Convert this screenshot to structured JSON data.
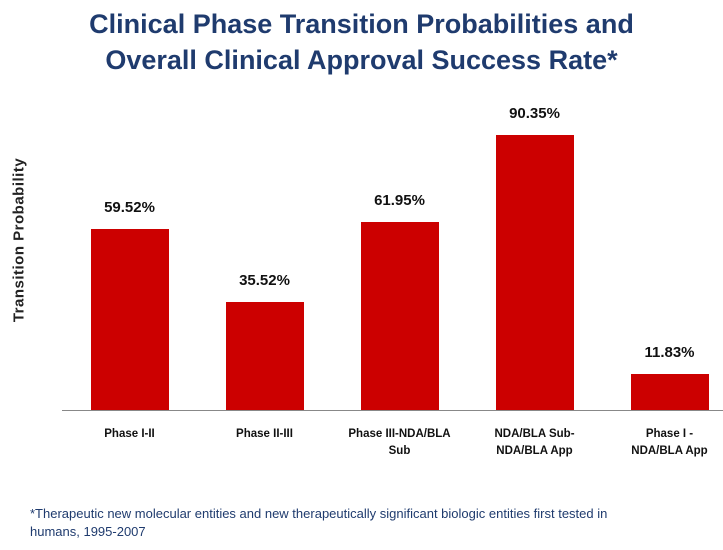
{
  "chart_data": {
    "type": "bar",
    "title": "Clinical Phase Transition Probabilities and Overall Clinical Approval Success Rate*",
    "y_label": "Transition Probability",
    "categories": [
      "Phase I-II",
      "Phase II-III",
      "Phase III-NDA/BLA Sub",
      "NDA/BLA Sub-NDA/BLA App",
      "Phase I - NDA/BLA App"
    ],
    "values": [
      59.52,
      35.52,
      61.95,
      90.35,
      11.83
    ],
    "value_labels": [
      "59.52%",
      "35.52%",
      "61.95%",
      "90.35%",
      "11.83%"
    ],
    "color": "#cc0000",
    "ylim": [
      0,
      100
    ],
    "footnote": "*Therapeutic new molecular entities and new therapeutically significant biologic entities first tested in humans, 1995-2007"
  }
}
